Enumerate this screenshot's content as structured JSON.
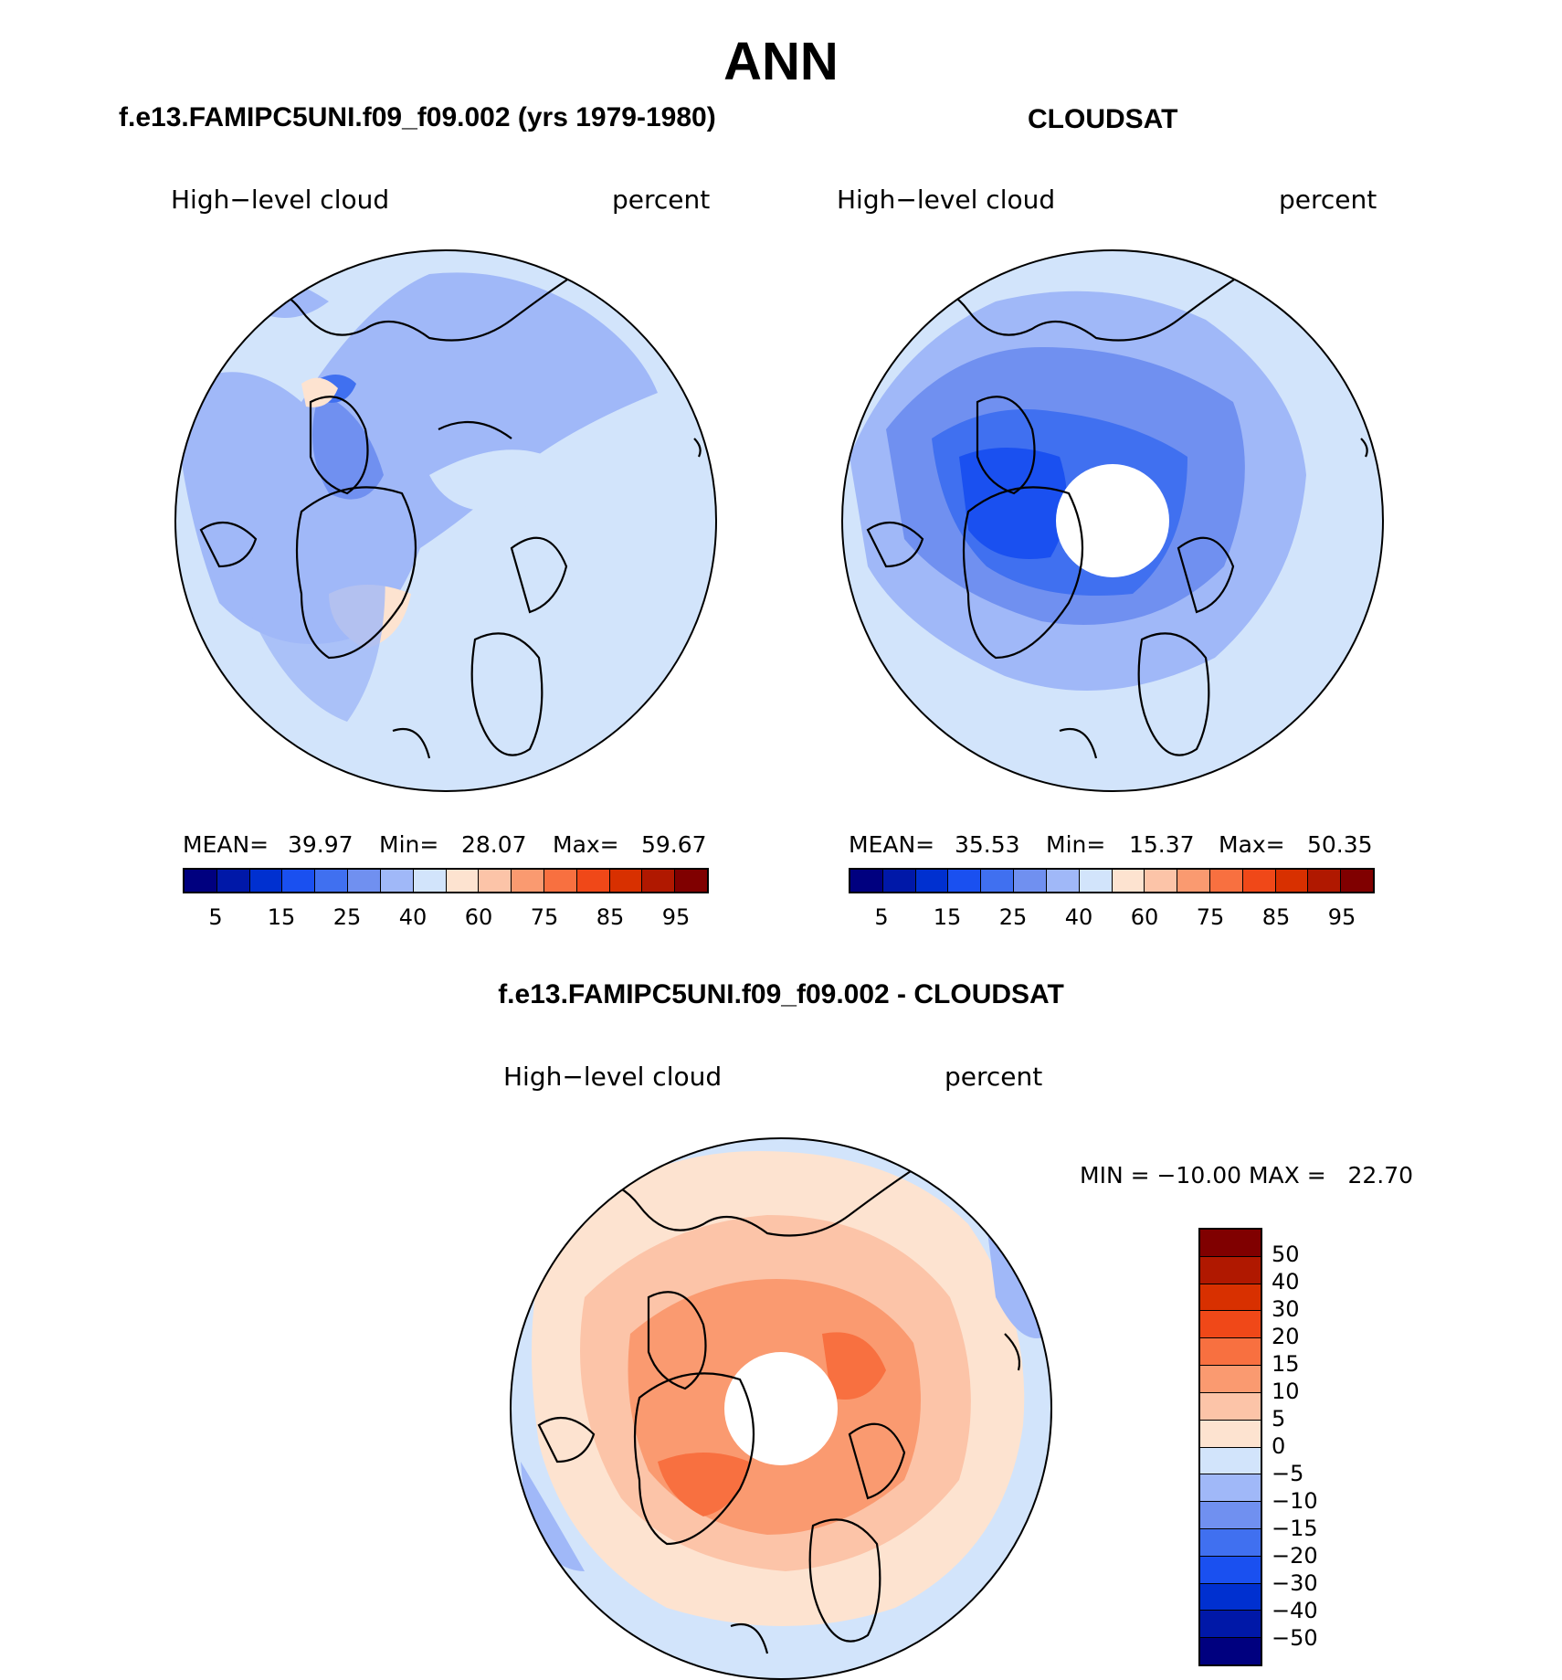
{
  "main_title": "ANN",
  "panels": [
    {
      "title": "f.e13.FAMIPC5UNI.f09_f09.002 (yrs 1979-1980)",
      "variable": "High−level cloud",
      "units": "percent",
      "stats": {
        "mean_label": "MEAN=",
        "mean": "39.97",
        "min_label": "Min=",
        "min": "28.07",
        "max_label": "Max=",
        "max": "59.67"
      }
    },
    {
      "title": "CLOUDSAT",
      "variable": "High−level cloud",
      "units": "percent",
      "stats": {
        "mean_label": "MEAN=",
        "mean": "35.53",
        "min_label": "Min=",
        "min": "15.37",
        "max_label": "Max=",
        "max": "50.35"
      }
    }
  ],
  "colorbar": {
    "colors": [
      "#00007f",
      "#0018a8",
      "#0030d0",
      "#1a50f0",
      "#4070f0",
      "#7090f0",
      "#a0b8f8",
      "#d2e4fb",
      "#fde3d0",
      "#fcc4a8",
      "#fa9a70",
      "#f87040",
      "#f04818",
      "#d83000",
      "#b01800",
      "#800000"
    ],
    "tick_labels": [
      "5",
      "15",
      "25",
      "40",
      "60",
      "75",
      "85",
      "95"
    ]
  },
  "diff_panel": {
    "title": "f.e13.FAMIPC5UNI.f09_f09.002 - CLOUDSAT",
    "variable": "High−level cloud",
    "units": "percent",
    "minmax": "MIN = −10.00 MAX =   22.70",
    "colorbar_colors": [
      "#800000",
      "#b01800",
      "#d83000",
      "#f04818",
      "#f87040",
      "#fa9a70",
      "#fcc4a8",
      "#fde3d0",
      "#d2e4fb",
      "#a0b8f8",
      "#7090f0",
      "#4070f0",
      "#1a50f0",
      "#0030d0",
      "#0018a8",
      "#00007f"
    ],
    "colorbar_labels": [
      "50",
      "40",
      "30",
      "20",
      "15",
      "10",
      "5",
      "0",
      "−5",
      "−10",
      "−15",
      "−20",
      "−30",
      "−40",
      "−50"
    ]
  }
}
